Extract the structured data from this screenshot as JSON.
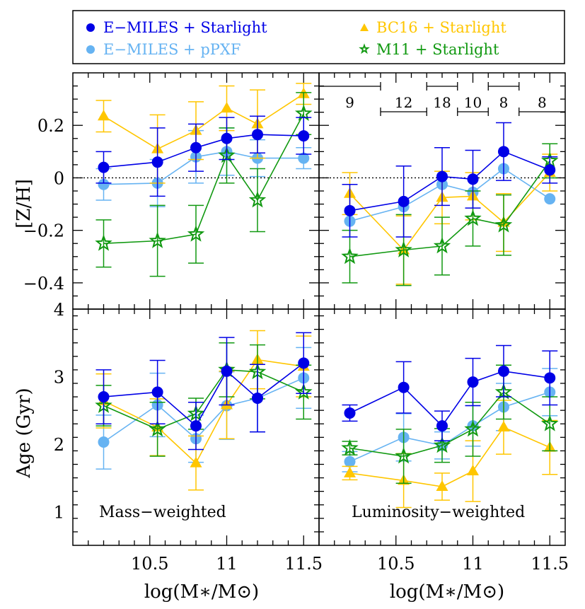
{
  "colors": {
    "emiles_starlight": "#0000e6",
    "emiles_ppxf": "#66b3f2",
    "bc16_starlight": "#ffc600",
    "m11_starlight": "#119911"
  },
  "legend": {
    "items": [
      {
        "key": "emiles_starlight",
        "label": "E−MILES + Starlight",
        "marker": "circle"
      },
      {
        "key": "emiles_ppxf",
        "label": "E−MILES + pPXF",
        "marker": "circle"
      },
      {
        "key": "bc16_starlight",
        "label": "BC16 + Starlight",
        "marker": "triangle"
      },
      {
        "key": "m11_starlight",
        "label": "M11 + Starlight",
        "marker": "star"
      }
    ]
  },
  "axes": {
    "xlabel": "log(M∗/M⊙)",
    "ylabel_top": "[Z/H]",
    "ylabel_bottom": "Age (Gyr)",
    "x_ticks": [
      "10.5",
      "11",
      "11.5"
    ],
    "top_y_ticks": [
      "0.2",
      "0",
      "−0.2",
      "−0.4"
    ],
    "bottom_y_ticks": [
      "4",
      "3",
      "2",
      "1"
    ]
  },
  "panel_labels": {
    "mass": "Mass−weighted",
    "lum": "Luminosity−weighted"
  },
  "bin_counts": [
    "9",
    "12",
    "18",
    "10",
    "8",
    "8"
  ],
  "chart_data": [
    {
      "type": "scatter",
      "panel": "top-left",
      "quantity": "[Z/H]",
      "weighting": "Mass-weighted",
      "xlim": [
        10.0,
        11.6
      ],
      "ylim": [
        -0.5,
        0.4
      ],
      "reference_line_y": 0,
      "series": [
        {
          "key": "emiles_starlight",
          "name": "E-MILES + Starlight",
          "x": [
            10.2,
            10.55,
            10.8,
            11.0,
            11.2,
            11.5
          ],
          "y": [
            0.04,
            0.06,
            0.115,
            0.15,
            0.165,
            0.16
          ],
          "err": [
            0.06,
            0.13,
            0.09,
            0.08,
            0.07,
            0.07
          ]
        },
        {
          "key": "emiles_ppxf",
          "name": "E-MILES + pPXF",
          "x": [
            10.2,
            10.55,
            10.8,
            11.0,
            11.2,
            11.5
          ],
          "y": [
            -0.025,
            -0.02,
            0.08,
            0.1,
            0.075,
            0.075
          ],
          "err": [
            0.06,
            0.09,
            0.1,
            0.09,
            0.07,
            0.04
          ]
        },
        {
          "key": "bc16_starlight",
          "name": "BC16 + Starlight",
          "x": [
            10.2,
            10.55,
            10.8,
            11.0,
            11.2,
            11.5
          ],
          "y": [
            0.235,
            0.11,
            0.18,
            0.265,
            0.205,
            0.32
          ],
          "err": [
            0.06,
            0.13,
            0.11,
            0.085,
            0.13,
            0.04
          ]
        },
        {
          "key": "m11_starlight",
          "name": "M11 + Starlight",
          "x": [
            10.2,
            10.55,
            10.8,
            11.0,
            11.2,
            11.5
          ],
          "y": [
            -0.25,
            -0.24,
            -0.215,
            0.085,
            -0.085,
            0.245
          ],
          "err": [
            0.09,
            0.135,
            0.11,
            0.105,
            0.12,
            0.08
          ]
        }
      ]
    },
    {
      "type": "scatter",
      "panel": "top-right",
      "quantity": "[Z/H]",
      "weighting": "Luminosity-weighted",
      "xlim": [
        10.0,
        11.6
      ],
      "ylim": [
        -0.5,
        0.4
      ],
      "reference_line_y": 0,
      "series": [
        {
          "key": "emiles_starlight",
          "name": "E-MILES + Starlight",
          "x": [
            10.2,
            10.55,
            10.8,
            11.0,
            11.2,
            11.5
          ],
          "y": [
            -0.125,
            -0.09,
            0.005,
            -0.005,
            0.1,
            0.03
          ],
          "err": [
            0.1,
            0.135,
            0.11,
            0.11,
            0.11,
            0.05
          ]
        },
        {
          "key": "emiles_ppxf",
          "name": "E-MILES + pPXF",
          "x": [
            10.2,
            10.55,
            10.8,
            11.0,
            11.2,
            11.5
          ],
          "y": [
            -0.165,
            -0.11,
            -0.025,
            -0.055,
            0.035,
            -0.08
          ]
        },
        {
          "key": "bc16_starlight",
          "name": "BC16 + Starlight",
          "x": [
            10.2,
            10.55,
            10.8,
            11.0,
            11.2,
            11.5
          ],
          "y": [
            -0.06,
            -0.275,
            -0.075,
            -0.07,
            -0.17,
            0.02
          ],
          "err": [
            0.08,
            0.13,
            0.1,
            0.09,
            0.11,
            0.07
          ]
        },
        {
          "key": "m11_starlight",
          "name": "M11 + Starlight",
          "x": [
            10.2,
            10.55,
            10.8,
            11.0,
            11.2,
            11.5
          ],
          "y": [
            -0.3,
            -0.275,
            -0.26,
            -0.155,
            -0.18,
            0.065
          ],
          "err": [
            0.1,
            0.135,
            0.11,
            0.105,
            0.115,
            0.065
          ]
        }
      ],
      "bins": [
        {
          "label": "9",
          "range": [
            10.0,
            10.4
          ]
        },
        {
          "label": "12",
          "range": [
            10.4,
            10.7
          ]
        },
        {
          "label": "18",
          "range": [
            10.7,
            10.9
          ]
        },
        {
          "label": "10",
          "range": [
            10.9,
            11.1
          ]
        },
        {
          "label": "8",
          "range": [
            11.1,
            11.3
          ]
        },
        {
          "label": "8",
          "range": [
            11.3,
            11.6
          ]
        }
      ]
    },
    {
      "type": "scatter",
      "panel": "bottom-left",
      "quantity": "Age (Gyr)",
      "weighting": "Mass-weighted",
      "xlim": [
        10.0,
        11.6
      ],
      "ylim": [
        0.5,
        4.0
      ],
      "series": [
        {
          "key": "emiles_starlight",
          "name": "E-MILES + Starlight",
          "x": [
            10.2,
            10.55,
            10.8,
            11.0,
            11.2,
            11.5
          ],
          "y": [
            2.7,
            2.77,
            2.27,
            3.08,
            2.68,
            3.2
          ],
          "err": [
            0.4,
            0.47,
            0.35,
            0.5,
            0.5,
            0.45
          ]
        },
        {
          "key": "emiles_ppxf",
          "name": "E-MILES + pPXF",
          "x": [
            10.2,
            10.55,
            10.8,
            11.0,
            11.2,
            11.5
          ],
          "y": [
            2.03,
            2.58,
            2.08,
            2.57,
            2.68,
            2.98
          ],
          "err": [
            0.4,
            0.47,
            0.35,
            0.5,
            0.5,
            0.45
          ]
        },
        {
          "key": "bc16_starlight",
          "name": "BC16 + Starlight",
          "x": [
            10.2,
            10.55,
            10.8,
            11.0,
            11.2,
            11.5
          ],
          "y": [
            2.64,
            2.25,
            1.72,
            2.58,
            3.25,
            3.15
          ],
          "err": [
            0.4,
            0.42,
            0.4,
            0.5,
            0.43,
            0.45
          ]
        },
        {
          "key": "m11_starlight",
          "name": "M11 + Starlight",
          "x": [
            10.2,
            10.55,
            10.8,
            11.0,
            11.2,
            11.5
          ],
          "y": [
            2.57,
            2.22,
            2.45,
            3.1,
            3.07,
            2.77
          ],
          "err": [
            0.3,
            0.4,
            0.23,
            0.4,
            0.4,
            0.4
          ]
        }
      ]
    },
    {
      "type": "scatter",
      "panel": "bottom-right",
      "quantity": "Age (Gyr)",
      "weighting": "Luminosity-weighted",
      "xlim": [
        10.0,
        11.6
      ],
      "ylim": [
        0.5,
        4.0
      ],
      "series": [
        {
          "key": "emiles_starlight",
          "name": "E-MILES + Starlight",
          "x": [
            10.2,
            10.55,
            10.8,
            11.0,
            11.2,
            11.5
          ],
          "y": [
            2.46,
            2.84,
            2.27,
            2.92,
            3.08,
            2.98
          ],
          "err": [
            0.12,
            0.38,
            0.22,
            0.35,
            0.38,
            0.4
          ]
        },
        {
          "key": "emiles_ppxf",
          "name": "E-MILES + pPXF",
          "x": [
            10.2,
            10.55,
            10.8,
            11.0,
            11.2,
            11.5
          ],
          "y": [
            1.74,
            2.1,
            1.98,
            2.27,
            2.55,
            2.77
          ],
          "err": [
            0.15,
            0.35,
            0.2,
            0.3,
            0.35,
            0.35
          ]
        },
        {
          "key": "bc16_starlight",
          "name": "BC16 + Starlight",
          "x": [
            10.2,
            10.55,
            10.8,
            11.0,
            11.2,
            11.5
          ],
          "y": [
            1.57,
            1.46,
            1.37,
            1.6,
            2.25,
            1.95
          ],
          "err": [
            0.1,
            0.4,
            0.2,
            0.45,
            0.4,
            0.4
          ]
        },
        {
          "key": "m11_starlight",
          "name": "M11 + Starlight",
          "x": [
            10.2,
            10.55,
            10.8,
            11.0,
            11.2,
            11.5
          ],
          "y": [
            1.94,
            1.82,
            1.98,
            2.22,
            2.77,
            2.3
          ],
          "err": [
            0.1,
            0.4,
            0.25,
            0.4,
            0.4,
            0.4
          ]
        }
      ]
    }
  ]
}
